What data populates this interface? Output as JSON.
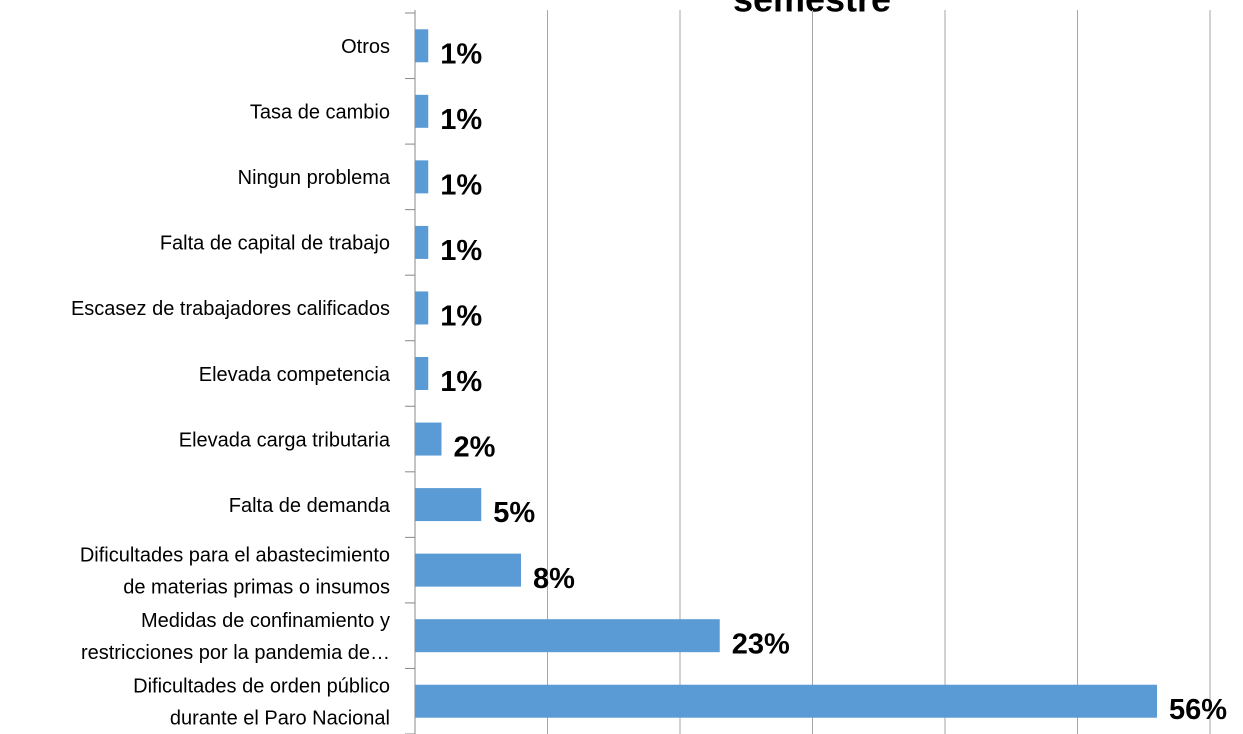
{
  "chart_data": {
    "type": "barh",
    "title": "semestre",
    "categories": [
      [
        "Otros"
      ],
      [
        "Tasa de cambio"
      ],
      [
        "Ningun problema"
      ],
      [
        "Falta de capital de trabajo"
      ],
      [
        "Escasez de trabajadores calificados"
      ],
      [
        "Elevada competencia"
      ],
      [
        "Elevada carga tributaria"
      ],
      [
        "Falta de demanda"
      ],
      [
        "Dificultades para el abastecimiento",
        "de materias primas o insumos"
      ],
      [
        "Medidas de confinamiento y",
        "restricciones por la pandemia de…"
      ],
      [
        "Dificultades de orden público",
        "durante el Paro Nacional"
      ]
    ],
    "values": [
      1,
      1,
      1,
      1,
      1,
      1,
      2,
      5,
      8,
      23,
      56
    ],
    "value_labels": [
      "1%",
      "1%",
      "1%",
      "1%",
      "1%",
      "1%",
      "2%",
      "5%",
      "8%",
      "23%",
      "56%"
    ],
    "color": "#5b9bd5",
    "xlim": [
      0,
      60
    ],
    "xticks": [
      0,
      10,
      20,
      30,
      40,
      50,
      60
    ],
    "grid": true
  }
}
